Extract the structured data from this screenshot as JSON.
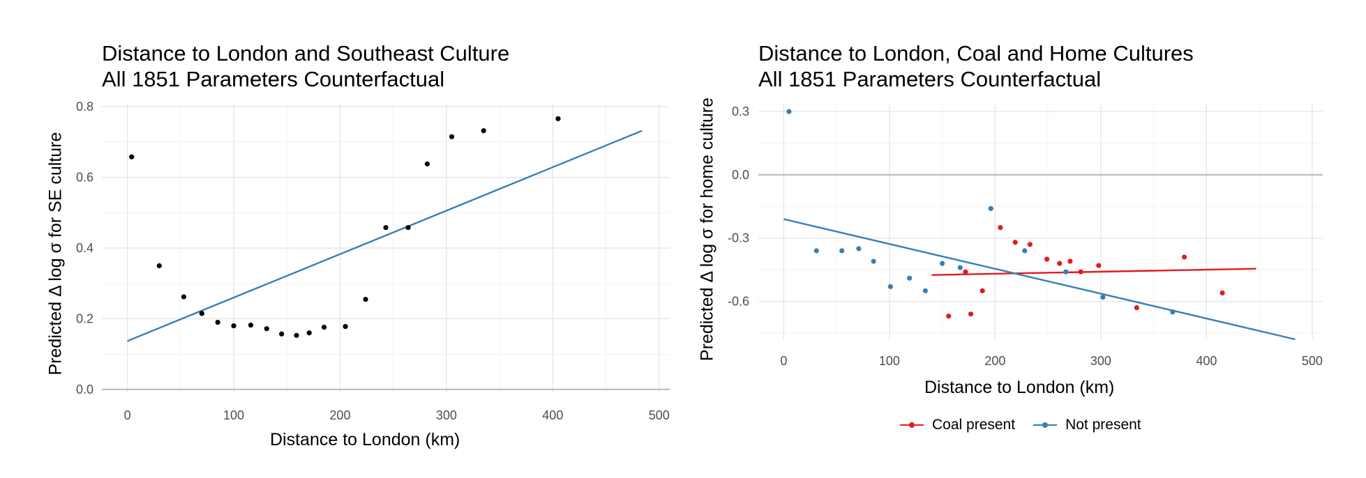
{
  "colors": {
    "coal": "#e41a1c",
    "not_present": "#377eb8",
    "points": "#000000",
    "fit": "#377eb8",
    "zero_line": "#bdbdbd"
  },
  "chart_data": [
    {
      "type": "scatter",
      "title_line1": "Distance to London and Southeast Culture",
      "title_line2": "All 1851 Parameters Counterfactual",
      "xlabel": "Distance to London (km)",
      "ylabel": "Predicted Δ log σ for SE culture",
      "xlim": [
        -24,
        510
      ],
      "ylim": [
        -0.01,
        0.81
      ],
      "xticks": [
        0,
        100,
        200,
        300,
        400,
        500
      ],
      "yticks": [
        0.0,
        0.2,
        0.4,
        0.6,
        0.8
      ],
      "ytick_labels": [
        "0.0",
        "0.2",
        "0.4",
        "0.6",
        "0.8"
      ],
      "hline": 0,
      "points": [
        [
          4,
          0.658
        ],
        [
          30,
          0.35
        ],
        [
          53,
          0.262
        ],
        [
          70,
          0.215
        ],
        [
          85,
          0.19
        ],
        [
          100,
          0.18
        ],
        [
          116,
          0.182
        ],
        [
          131,
          0.172
        ],
        [
          145,
          0.157
        ],
        [
          159,
          0.153
        ],
        [
          171,
          0.16
        ],
        [
          185,
          0.176
        ],
        [
          205,
          0.178
        ],
        [
          224,
          0.255
        ],
        [
          243,
          0.458
        ],
        [
          264,
          0.458
        ],
        [
          282,
          0.638
        ],
        [
          305,
          0.715
        ],
        [
          335,
          0.732
        ],
        [
          405,
          0.766
        ]
      ],
      "fit_line": [
        [
          0,
          0.137
        ],
        [
          484,
          0.732
        ]
      ]
    },
    {
      "type": "scatter",
      "title_line1": "Distance to London, Coal and Home Cultures",
      "title_line2": "All 1851 Parameters Counterfactual",
      "xlabel": "Distance to London (km)",
      "ylabel": "Predicted Δ log σ for home culture",
      "xlim": [
        -24,
        510
      ],
      "ylim": [
        -0.78,
        0.34
      ],
      "xticks": [
        0,
        100,
        200,
        300,
        400,
        500
      ],
      "yticks": [
        0.3,
        0.0,
        -0.3,
        -0.6
      ],
      "ytick_labels": [
        "0.3",
        "0.0",
        "-0.3",
        "-0.6"
      ],
      "hline": 0,
      "series": [
        {
          "name": "Coal present",
          "color": "#e41a1c",
          "points": [
            [
              156,
              -0.67
            ],
            [
              172,
              -0.46
            ],
            [
              177,
              -0.66
            ],
            [
              188,
              -0.55
            ],
            [
              205,
              -0.25
            ],
            [
              219,
              -0.32
            ],
            [
              233,
              -0.33
            ],
            [
              249,
              -0.4
            ],
            [
              261,
              -0.42
            ],
            [
              271,
              -0.41
            ],
            [
              281,
              -0.46
            ],
            [
              298,
              -0.43
            ],
            [
              334,
              -0.63
            ],
            [
              379,
              -0.39
            ],
            [
              415,
              -0.56
            ]
          ],
          "fit_line": [
            [
              140,
              -0.475
            ],
            [
              447,
              -0.445
            ]
          ]
        },
        {
          "name": "Not present",
          "color": "#377eb8",
          "points": [
            [
              5,
              0.3
            ],
            [
              31,
              -0.36
            ],
            [
              55,
              -0.36
            ],
            [
              71,
              -0.35
            ],
            [
              85,
              -0.41
            ],
            [
              101,
              -0.53
            ],
            [
              119,
              -0.49
            ],
            [
              134,
              -0.55
            ],
            [
              150,
              -0.42
            ],
            [
              167,
              -0.44
            ],
            [
              196,
              -0.16
            ],
            [
              228,
              -0.36
            ],
            [
              267,
              -0.46
            ],
            [
              302,
              -0.58
            ],
            [
              368,
              -0.65
            ]
          ],
          "fit_line": [
            [
              0,
              -0.21
            ],
            [
              484,
              -0.78
            ]
          ]
        }
      ]
    }
  ]
}
